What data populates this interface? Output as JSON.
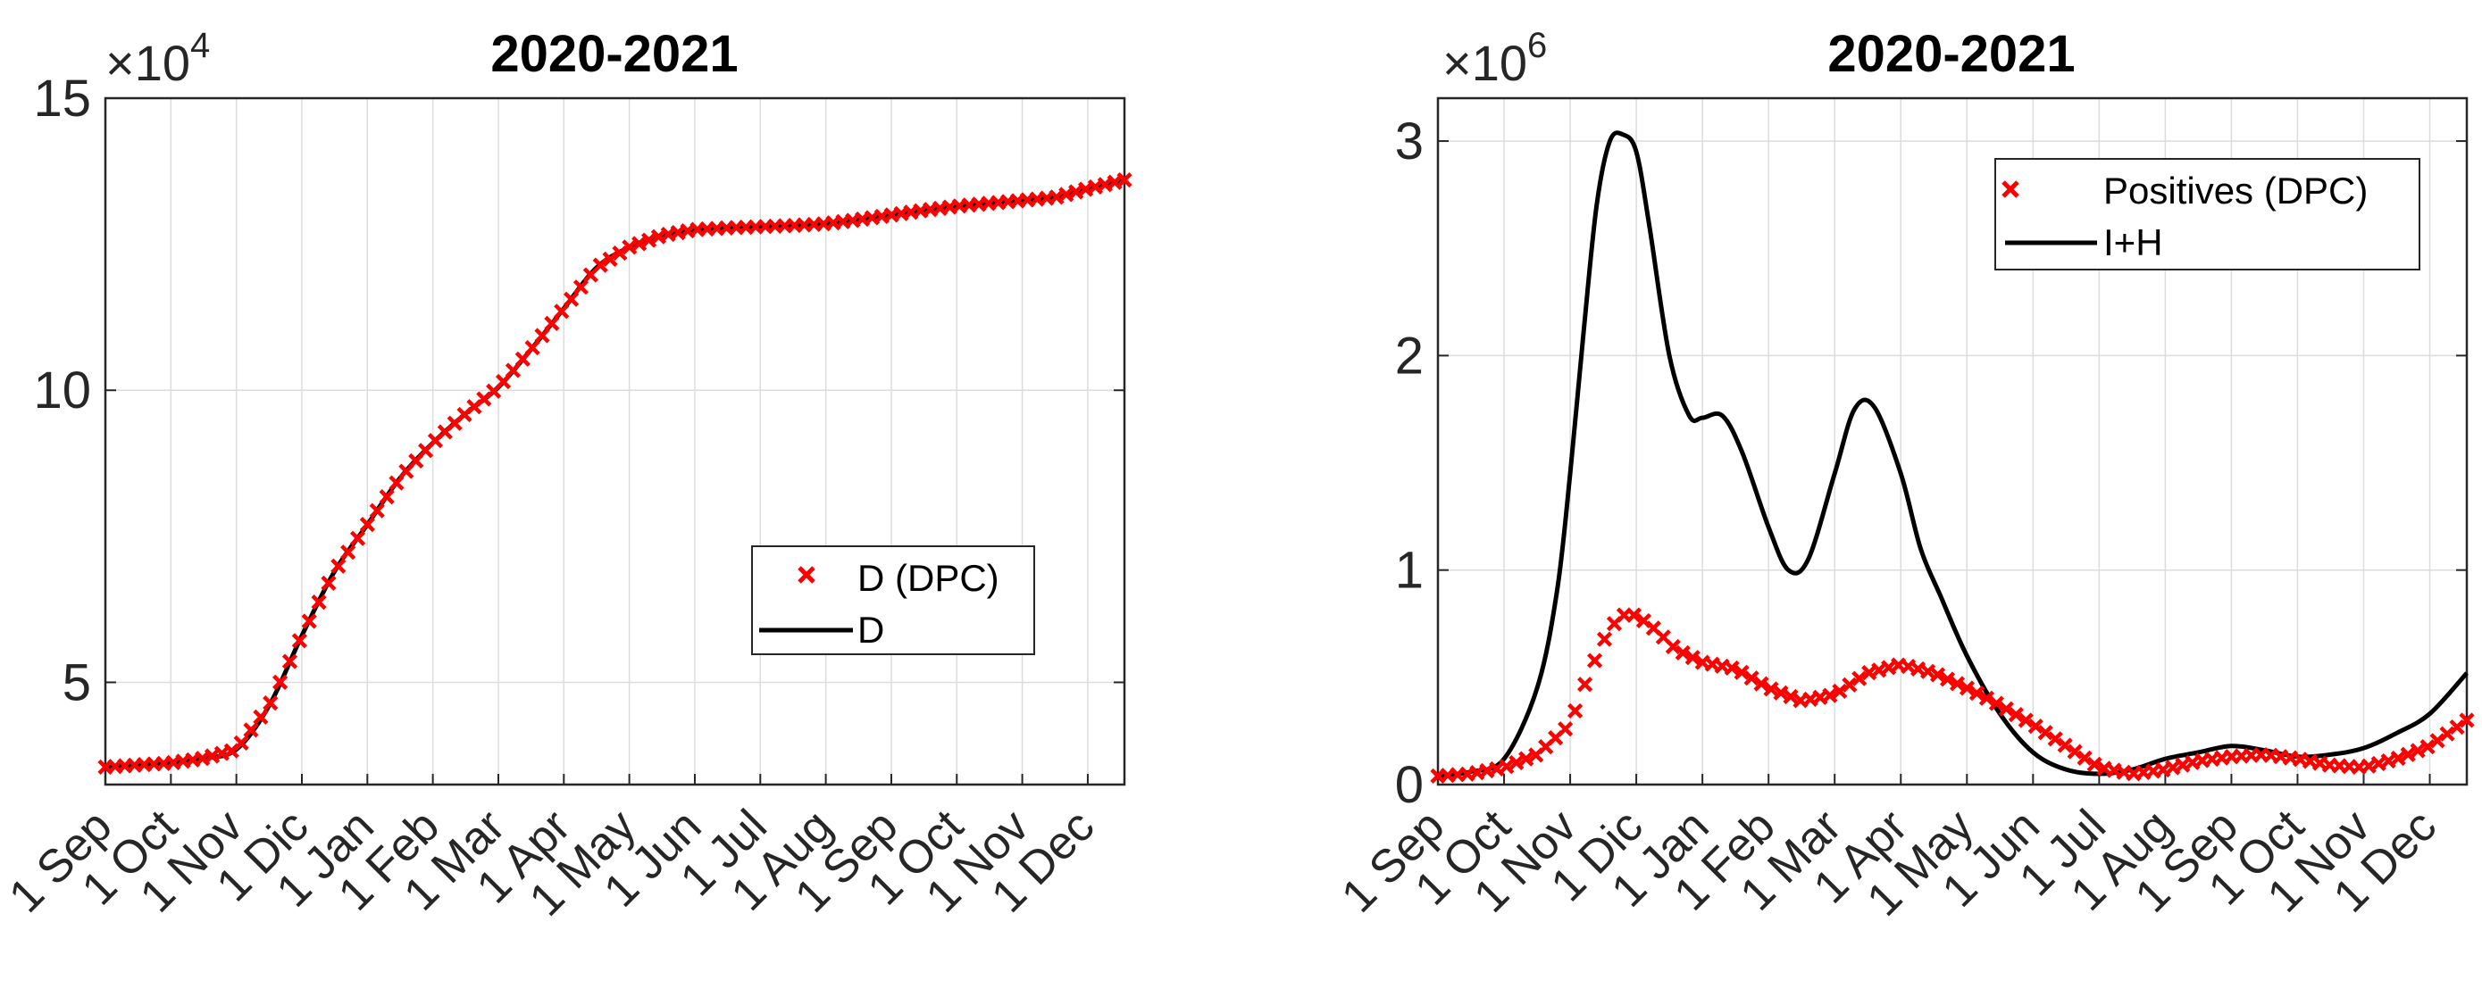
{
  "chart_data": [
    {
      "type": "line",
      "title": "2020-2021",
      "exponent_label": "×10",
      "exponent_power": "4",
      "xlabel": "",
      "ylabel": "",
      "x_tick_labels": [
        "1 Sep",
        "1 Oct",
        "1 Nov",
        "1 Dic",
        "1 Jan",
        "1 Feb",
        "1 Mar",
        "1 Apr",
        "1 May",
        "1 Jun",
        "1 Jul",
        "1 Aug",
        "1 Sep",
        "1 Oct",
        "1 Nov",
        "1 Dec"
      ],
      "xlim": [
        0,
        15.56
      ],
      "ylim": [
        3.25,
        15
      ],
      "y_ticks": [
        5,
        10,
        15
      ],
      "y_tick_labels": [
        "5",
        "10",
        "15"
      ],
      "grid": true,
      "legend_position": "middle-right",
      "series": [
        {
          "name": "D (DPC)",
          "style": "markers",
          "color": "#ff0000",
          "x": [
            0,
            1,
            1.5,
            2,
            2.5,
            3,
            3.5,
            4,
            4.5,
            5,
            5.5,
            6,
            6.5,
            7,
            7.5,
            8,
            8.5,
            9,
            9.5,
            10,
            10.5,
            11,
            11.5,
            12,
            12.5,
            13,
            13.5,
            14,
            14.5,
            15,
            15.56
          ],
          "y": [
            3.55,
            3.62,
            3.7,
            3.85,
            4.6,
            5.8,
            6.9,
            7.7,
            8.5,
            9.1,
            9.6,
            10.05,
            10.7,
            11.4,
            12.1,
            12.45,
            12.65,
            12.75,
            12.78,
            12.8,
            12.82,
            12.85,
            12.92,
            13.0,
            13.08,
            13.15,
            13.2,
            13.25,
            13.3,
            13.45,
            13.6
          ]
        },
        {
          "name": "D",
          "style": "line",
          "color": "#000000",
          "x": [
            0,
            1,
            1.5,
            2,
            2.5,
            3,
            3.5,
            4,
            4.5,
            5,
            5.5,
            6,
            6.5,
            7,
            7.5,
            8,
            8.5,
            9,
            9.5,
            10,
            10.5,
            11,
            11.5,
            12,
            12.5,
            13,
            13.5,
            14,
            14.5,
            15,
            15.56
          ],
          "y": [
            3.55,
            3.62,
            3.7,
            3.85,
            4.6,
            5.8,
            6.9,
            7.7,
            8.5,
            9.1,
            9.6,
            10.05,
            10.7,
            11.4,
            12.1,
            12.45,
            12.65,
            12.75,
            12.78,
            12.8,
            12.82,
            12.85,
            12.92,
            13.0,
            13.08,
            13.15,
            13.2,
            13.25,
            13.3,
            13.45,
            13.6
          ]
        }
      ]
    },
    {
      "type": "line",
      "title": "2020-2021",
      "exponent_label": "×10",
      "exponent_power": "6",
      "xlabel": "",
      "ylabel": "",
      "x_tick_labels": [
        "1 Sep",
        "1 Oct",
        "1 Nov",
        "1 Dic",
        "1 Jan",
        "1 Feb",
        "1 Mar",
        "1 Apr",
        "1 May",
        "1 Jun",
        "1 Jul",
        "1 Aug",
        "1 Sep",
        "1 Oct",
        "1 Nov",
        "1 Dec"
      ],
      "xlim": [
        0,
        15.56
      ],
      "ylim": [
        0,
        3.2
      ],
      "y_ticks": [
        0,
        1,
        2,
        3
      ],
      "y_tick_labels": [
        "0",
        "1",
        "2",
        "3"
      ],
      "grid": true,
      "legend_position": "top-right",
      "series": [
        {
          "name": "Positives (DPC)",
          "style": "markers",
          "color": "#ff0000",
          "x": [
            0,
            0.5,
            1,
            1.5,
            2,
            2.2,
            2.4,
            2.6,
            2.8,
            3,
            3.3,
            3.6,
            4,
            4.5,
            5,
            5.5,
            6,
            6.5,
            7,
            7.5,
            8,
            8.5,
            9,
            9.5,
            10,
            10.5,
            11,
            11.5,
            12,
            12.5,
            13,
            13.5,
            14,
            14.5,
            15,
            15.56
          ],
          "y": [
            0.04,
            0.05,
            0.08,
            0.14,
            0.28,
            0.45,
            0.6,
            0.73,
            0.79,
            0.79,
            0.72,
            0.63,
            0.57,
            0.54,
            0.45,
            0.39,
            0.42,
            0.52,
            0.56,
            0.52,
            0.45,
            0.37,
            0.28,
            0.18,
            0.08,
            0.05,
            0.07,
            0.11,
            0.13,
            0.14,
            0.12,
            0.09,
            0.08,
            0.12,
            0.18,
            0.3
          ]
        },
        {
          "name": "I+H",
          "style": "line",
          "color": "#000000",
          "x": [
            0,
            0.5,
            1,
            1.5,
            1.8,
            2,
            2.2,
            2.4,
            2.6,
            2.8,
            3,
            3.2,
            3.5,
            3.8,
            4,
            4.3,
            4.6,
            5,
            5.3,
            5.6,
            6,
            6.3,
            6.6,
            7,
            7.3,
            7.6,
            8,
            8.5,
            9,
            9.5,
            10,
            10.5,
            11,
            11.5,
            12,
            12.5,
            13,
            13.5,
            14,
            14.5,
            15,
            15.56
          ],
          "y": [
            0.04,
            0.06,
            0.12,
            0.45,
            0.9,
            1.45,
            2.1,
            2.7,
            3.0,
            3.03,
            2.95,
            2.6,
            2.0,
            1.72,
            1.71,
            1.72,
            1.55,
            1.2,
            1.0,
            1.05,
            1.45,
            1.75,
            1.76,
            1.45,
            1.1,
            0.88,
            0.6,
            0.33,
            0.15,
            0.07,
            0.05,
            0.07,
            0.12,
            0.15,
            0.18,
            0.16,
            0.13,
            0.14,
            0.17,
            0.24,
            0.33,
            0.52
          ]
        }
      ]
    }
  ]
}
